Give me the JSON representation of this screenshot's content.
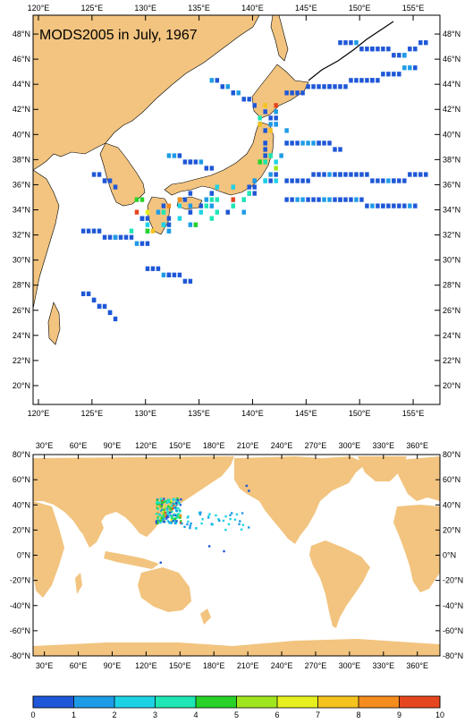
{
  "map_top": {
    "title": "MODS2005 in July, 1967",
    "lon_labels": [
      "120°E",
      "125°E",
      "130°E",
      "135°E",
      "140°E",
      "145°E",
      "150°E",
      "155°E"
    ],
    "lat_labels": [
      "48°N",
      "46°N",
      "44°N",
      "42°N",
      "40°N",
      "38°N",
      "36°N",
      "34°N",
      "32°N",
      "30°N",
      "28°N",
      "26°N",
      "24°N",
      "22°N",
      "20°N"
    ],
    "lon_range": [
      119.5,
      157.5
    ],
    "lat_range": [
      18.5,
      49.5
    ],
    "land_color": "#f2c47f",
    "ocean_color": "#ffffff"
  },
  "map_bottom": {
    "lon_labels": [
      "30°E",
      "60°E",
      "90°E",
      "120°E",
      "150°E",
      "180°E",
      "210°E",
      "240°E",
      "270°E",
      "300°E",
      "330°E",
      "360°E"
    ],
    "lat_labels": [
      "80°N",
      "60°N",
      "40°N",
      "20°N",
      "0°N",
      "-20°N",
      "-40°N",
      "-60°N",
      "-80°N"
    ],
    "lon_range": [
      20,
      380
    ],
    "lat_range": [
      -80,
      80
    ],
    "land_color": "#f2c47f"
  },
  "colorbar": {
    "ticks": [
      "0",
      "1",
      "2",
      "3",
      "4",
      "5",
      "6",
      "7",
      "8",
      "9",
      "10"
    ],
    "colors": [
      "#1e57d7",
      "#1e9be6",
      "#1ed2e6",
      "#1ee6b4",
      "#28d228",
      "#a0e61e",
      "#e6f01e",
      "#f5c31e",
      "#f58c1e",
      "#e6461e"
    ]
  },
  "legend": {
    "unit": ""
  }
}
